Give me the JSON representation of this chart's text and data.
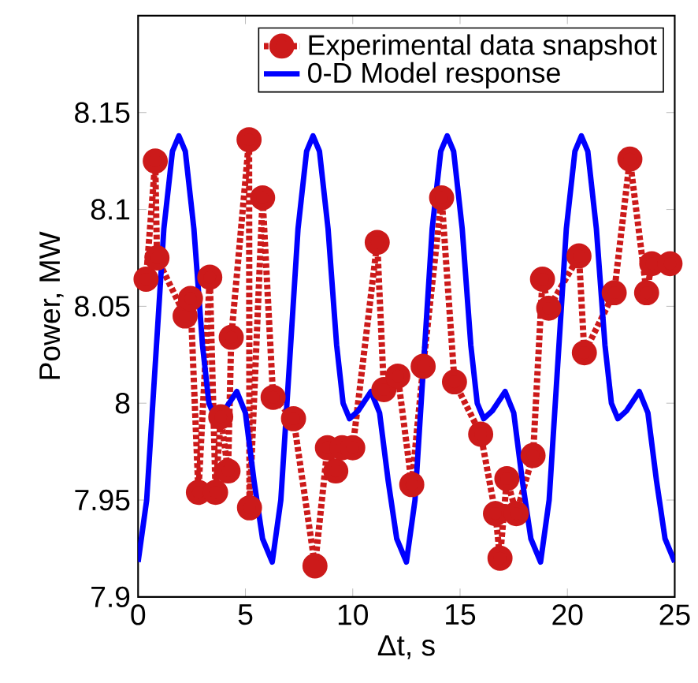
{
  "chart_data": {
    "type": "line",
    "xlabel": "Δt,  s",
    "ylabel": "Power,  MW",
    "xlim": [
      0,
      25
    ],
    "ylim": [
      7.9,
      8.2
    ],
    "xticks": [
      0,
      5,
      10,
      15,
      20,
      25
    ],
    "yticks": [
      7.9,
      7.95,
      8,
      8.05,
      8.1,
      8.15
    ],
    "legend": "top right",
    "series": [
      {
        "name": "Experimental data snapshot",
        "color": "#cc1a1a",
        "marker": "circle",
        "line_style": "dotted",
        "x": [
          0.37,
          0.8,
          0.88,
          2.19,
          2.44,
          2.81,
          3.34,
          3.61,
          3.85,
          4.19,
          4.34,
          5.17,
          5.19,
          5.8,
          6.29,
          7.24,
          8.24,
          8.82,
          9.21,
          9.5,
          10.0,
          11.14,
          11.45,
          12.1,
          12.75,
          13.28,
          14.14,
          14.74,
          15.96,
          16.65,
          16.86,
          17.18,
          17.62,
          18.4,
          18.84,
          19.13,
          20.54,
          20.79,
          22.18,
          22.91,
          23.69,
          23.93,
          24.78
        ],
        "values": [
          8.064,
          8.125,
          8.075,
          8.045,
          8.054,
          7.954,
          8.065,
          7.954,
          7.993,
          7.965,
          8.034,
          8.136,
          7.946,
          8.106,
          8.003,
          7.992,
          7.916,
          7.977,
          7.965,
          7.977,
          7.977,
          8.083,
          8.007,
          8.014,
          7.958,
          8.019,
          8.106,
          8.011,
          7.984,
          7.943,
          7.92,
          7.961,
          7.943,
          7.973,
          8.064,
          8.049,
          8.076,
          8.026,
          8.057,
          8.126,
          8.057,
          8.072,
          8.072
        ]
      },
      {
        "name": "0-D Model response",
        "color": "#0000ff",
        "marker": "none",
        "line_style": "solid",
        "x": [
          0,
          0.4,
          0.8,
          1.2,
          1.6,
          1.9,
          2.2,
          2.6,
          3.0,
          3.3,
          3.6,
          4.0,
          4.6,
          5.0,
          5.4,
          5.8,
          6.25,
          6.65,
          7.05,
          7.45,
          7.85,
          8.15,
          8.45,
          8.85,
          9.25,
          9.55,
          9.85,
          10.25,
          10.85,
          11.25,
          11.65,
          12.05,
          12.5,
          12.9,
          13.3,
          13.7,
          14.1,
          14.4,
          14.7,
          15.1,
          15.5,
          15.8,
          16.1,
          16.5,
          17.1,
          17.5,
          17.9,
          18.3,
          18.75,
          19.15,
          19.55,
          19.95,
          20.35,
          20.65,
          20.95,
          21.35,
          21.75,
          22.05,
          22.35,
          22.75,
          23.35,
          23.75,
          24.15,
          24.55,
          25
        ],
        "values": [
          7.918,
          7.95,
          8.02,
          8.09,
          8.13,
          8.138,
          8.13,
          8.09,
          8.03,
          8.0,
          7.992,
          7.996,
          8.006,
          7.995,
          7.96,
          7.93,
          7.918,
          7.95,
          8.02,
          8.09,
          8.13,
          8.138,
          8.13,
          8.09,
          8.03,
          8.0,
          7.992,
          7.996,
          8.006,
          7.995,
          7.96,
          7.93,
          7.918,
          7.95,
          8.02,
          8.09,
          8.13,
          8.138,
          8.13,
          8.09,
          8.03,
          8.0,
          7.992,
          7.996,
          8.006,
          7.995,
          7.96,
          7.93,
          7.918,
          7.95,
          8.02,
          8.09,
          8.13,
          8.138,
          8.13,
          8.09,
          8.03,
          8.0,
          7.992,
          7.996,
          8.006,
          7.995,
          7.96,
          7.93,
          7.918
        ]
      }
    ]
  }
}
